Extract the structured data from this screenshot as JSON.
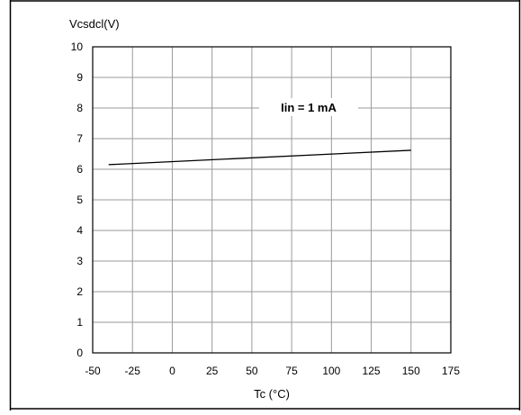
{
  "chart_data": {
    "type": "line",
    "ylabel": "Vcsdcl(V)",
    "xlabel": "Tc (°C)",
    "annotation": "Iin = 1 mA",
    "xlim": [
      -50,
      175
    ],
    "ylim": [
      0,
      10
    ],
    "xticks": [
      -50,
      -25,
      0,
      25,
      50,
      75,
      100,
      125,
      150,
      175
    ],
    "yticks": [
      0,
      1,
      2,
      3,
      4,
      5,
      6,
      7,
      8,
      9,
      10
    ],
    "grid": true,
    "series": [
      {
        "x": [
          -40,
          150
        ],
        "y": [
          6.15,
          6.62
        ],
        "color": "#000000"
      }
    ]
  }
}
